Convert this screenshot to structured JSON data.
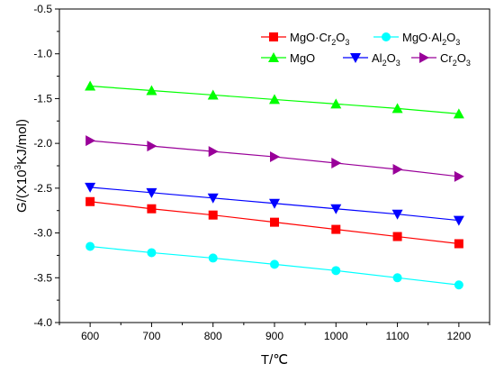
{
  "chart_data": {
    "type": "line",
    "xlabel": "T/℃",
    "ylabel_parts": [
      "G/(X10",
      "3",
      "KJ/mol)"
    ],
    "xlim": [
      550,
      1250
    ],
    "ylim": [
      -4.0,
      -0.5
    ],
    "x_ticks": [
      600,
      700,
      800,
      900,
      1000,
      1100,
      1200
    ],
    "y_ticks": [
      -4.0,
      -3.5,
      -3.0,
      -2.5,
      -2.0,
      -1.5,
      -1.0,
      -0.5
    ],
    "x_tick_labels": [
      "600",
      "700",
      "800",
      "900",
      "1000",
      "1100",
      "1200"
    ],
    "y_tick_labels": [
      "-4.0",
      "-3.5",
      "-3.0",
      "-2.5",
      "-2.0",
      "-1.5",
      "-1.0",
      "-0.5"
    ],
    "grid": false,
    "legend_position": "top-right",
    "x": [
      600,
      700,
      800,
      900,
      1000,
      1100,
      1200
    ],
    "series": [
      {
        "name_parts": [
          [
            "MgO·Cr",
            ""
          ],
          [
            "2",
            "sub"
          ],
          [
            "O",
            ""
          ],
          [
            "3",
            "sub"
          ]
        ],
        "color": "#ff0000",
        "marker": "square",
        "values": [
          -2.65,
          -2.73,
          -2.8,
          -2.88,
          -2.96,
          -3.04,
          -3.12
        ]
      },
      {
        "name_parts": [
          [
            "MgO·Al",
            ""
          ],
          [
            "2",
            "sub"
          ],
          [
            "O",
            ""
          ],
          [
            "3",
            "sub"
          ]
        ],
        "color": "#00ffff",
        "marker": "circle",
        "values": [
          -3.15,
          -3.22,
          -3.28,
          -3.35,
          -3.42,
          -3.5,
          -3.58
        ]
      },
      {
        "name_parts": [
          [
            "MgO",
            ""
          ]
        ],
        "color": "#00ff00",
        "marker": "triangle-up",
        "values": [
          -1.36,
          -1.41,
          -1.46,
          -1.51,
          -1.56,
          -1.61,
          -1.67
        ]
      },
      {
        "name_parts": [
          [
            "Al",
            ""
          ],
          [
            "2",
            "sub"
          ],
          [
            "O",
            ""
          ],
          [
            "3",
            "sub"
          ]
        ],
        "color": "#0000ff",
        "marker": "triangle-down",
        "values": [
          -2.49,
          -2.55,
          -2.61,
          -2.67,
          -2.73,
          -2.79,
          -2.86
        ]
      },
      {
        "name_parts": [
          [
            "Cr",
            ""
          ],
          [
            "2",
            "sub"
          ],
          [
            "O",
            ""
          ],
          [
            "3",
            "sub"
          ]
        ],
        "color": "#990099",
        "marker": "triangle-right",
        "values": [
          -1.97,
          -2.03,
          -2.09,
          -2.15,
          -2.22,
          -2.29,
          -2.37
        ]
      }
    ]
  }
}
